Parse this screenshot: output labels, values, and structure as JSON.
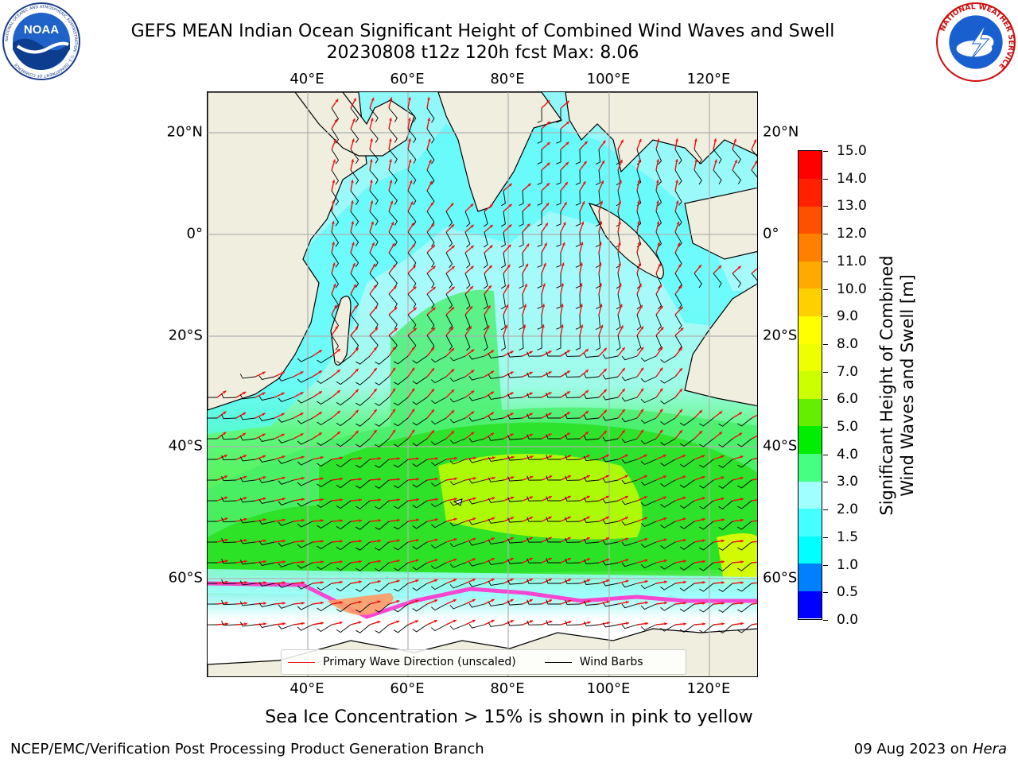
{
  "header": {
    "title_line1": "GEFS MEAN Indian Ocean Significant Height of Combined Wind Waves and Swell",
    "title_line2": "20230808 t12z 120h fcst   Max: 8.06"
  },
  "logos": {
    "left": {
      "name": "noaa-logo",
      "text": "NOAA",
      "ring_text": "NATIONAL OCEANIC AND ATMOSPHERIC ADMINISTRATION · U.S. DEPARTMENT OF COMMERCE"
    },
    "right": {
      "name": "nws-logo",
      "ring_text": "NATIONAL WEATHER SERVICE"
    }
  },
  "map": {
    "lon_ticks": [
      "40°E",
      "60°E",
      "80°E",
      "100°E",
      "120°E"
    ],
    "lat_ticks_left": [
      "20°N",
      "0°",
      "20°S",
      "40°S",
      "60°S"
    ],
    "lat_ticks_right": [
      "20°N",
      "0°",
      "20°S",
      "40°S",
      "60°S"
    ],
    "colors": {
      "land": "#efeedf",
      "sea_ice_white": "#ffffff",
      "grid": "#b0b0b0",
      "wave_arrow": "#ee1111",
      "wind_barb": "#000000"
    }
  },
  "legend": {
    "primary_wave": "Primary Wave Direction (unscaled)",
    "wind_barbs": "Wind Barbs"
  },
  "colorbar": {
    "title_line1": "Significant Height of Combined",
    "title_line2": "Wind Waves and Swell [m]",
    "ticks": [
      "15.0",
      "14.0",
      "13.0",
      "12.0",
      "11.0",
      "10.0",
      "9.0",
      "8.0",
      "7.0",
      "6.0",
      "5.0",
      "4.0",
      "3.0",
      "2.0",
      "1.5",
      "1.0",
      "0.5",
      "0.0"
    ],
    "colors_bottom_to_top": [
      "#0000ff",
      "#0080ff",
      "#00ffff",
      "#44ffff",
      "#a0ffff",
      "#44ff80",
      "#00ee00",
      "#66ee00",
      "#ccff00",
      "#eeff00",
      "#ffff00",
      "#ffd000",
      "#ffaa00",
      "#ff8000",
      "#ff5000",
      "#ff2000",
      "#ff0000"
    ]
  },
  "footer": {
    "sea_ice_note": "Sea Ice Concentration > 15% is shown in pink to yellow",
    "credit": "NCEP/EMC/Verification Post Processing Product Generation Branch",
    "date": "09 Aug 2023 on ",
    "host": "Hera"
  }
}
